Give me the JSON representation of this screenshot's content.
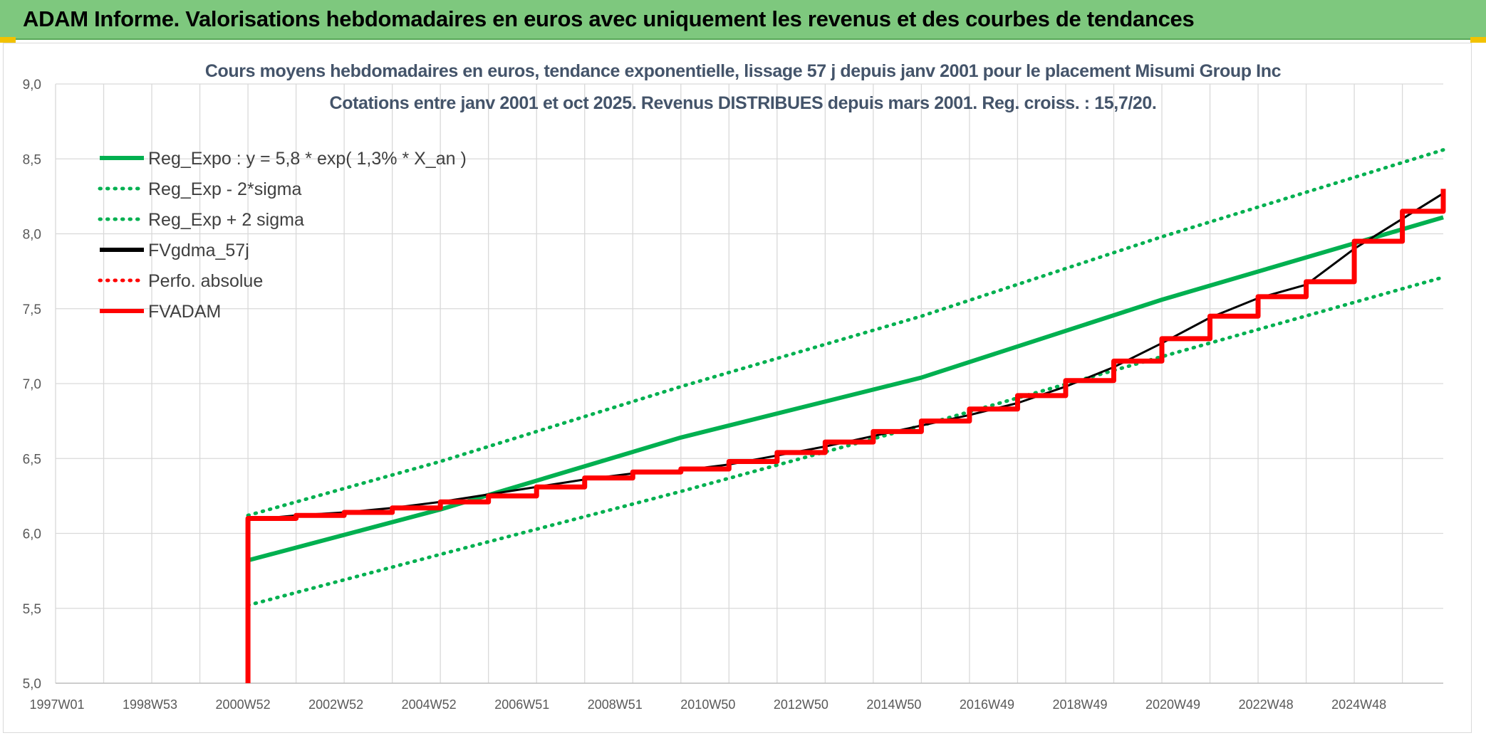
{
  "banner": {
    "title": "ADAM Informe. Valorisations hebdomadaires en euros avec uniquement les revenus et des courbes de tendances"
  },
  "colors": {
    "banner": "#7ec87e",
    "reg_expo": "#00b050",
    "fvgdma": "#000000",
    "fvadam": "#ff0000",
    "grid": "#d9d9d9",
    "title_text": "#44546a"
  },
  "chart_data": {
    "type": "line",
    "title": "Cours moyens hebdomadaires en euros, tendance exponentielle, lissage 57 j depuis janv 2001 pour le placement Misumi Group Inc",
    "subtitle": "Cotations entre janv 2001 et oct 2025. Revenus DISTRIBUES depuis mars 2001. Reg. croiss. : 15,7/20.",
    "xlabel": "",
    "ylabel": "",
    "ylim": [
      5.0,
      9.0
    ],
    "yticks": [
      "5,0",
      "5,5",
      "6,0",
      "6,5",
      "7,0",
      "7,5",
      "8,0",
      "8,5",
      "9,0"
    ],
    "xlim": [
      1997.0,
      2025.85
    ],
    "xticks": [
      "1997W01",
      "1998W53",
      "2000W52",
      "2002W52",
      "2004W52",
      "2006W51",
      "2008W51",
      "2010W50",
      "2012W50",
      "2014W50",
      "2016W49",
      "2018W49",
      "2020W49",
      "2022W48",
      "2024W48"
    ],
    "grid": true,
    "legend_position": "top-left",
    "series": [
      {
        "name": "Reg_Expo : y = 5,8 * exp( 1,3% *  X_an )",
        "style": "solid",
        "color": "#00b050",
        "x": [
          2001,
          2005,
          2010,
          2015,
          2020,
          2025.85
        ],
        "values": [
          5.82,
          6.16,
          6.64,
          7.04,
          7.56,
          8.11
        ]
      },
      {
        "name": "Reg_Exp - 2*sigma",
        "style": "dotted",
        "color": "#00b050",
        "x": [
          2001,
          2005,
          2010,
          2015,
          2020,
          2025.85
        ],
        "values": [
          5.52,
          5.86,
          6.28,
          6.72,
          7.18,
          7.71
        ]
      },
      {
        "name": "Reg_Exp + 2 sigma",
        "style": "dotted",
        "color": "#00b050",
        "x": [
          2001,
          2005,
          2010,
          2015,
          2020,
          2025.85
        ],
        "values": [
          6.12,
          6.48,
          6.98,
          7.45,
          7.98,
          8.56
        ]
      },
      {
        "name": "FVgdma_57j",
        "style": "solid",
        "color": "#000000",
        "x": [
          2001,
          2002,
          2003,
          2004,
          2005,
          2006,
          2007,
          2008,
          2009,
          2010,
          2011,
          2012,
          2013,
          2014,
          2015,
          2016,
          2017,
          2018,
          2019,
          2020,
          2021,
          2022,
          2023,
          2024,
          2025,
          2025.85
        ],
        "values": [
          6.09,
          6.12,
          6.14,
          6.17,
          6.21,
          6.26,
          6.31,
          6.36,
          6.4,
          6.42,
          6.46,
          6.52,
          6.58,
          6.65,
          6.72,
          6.79,
          6.87,
          6.98,
          7.11,
          7.27,
          7.44,
          7.57,
          7.66,
          7.9,
          8.1,
          8.27
        ]
      },
      {
        "name": "Perfo. absolue",
        "style": "dotted",
        "color": "#ff0000",
        "x": [],
        "values": []
      },
      {
        "name": "FVADAM",
        "style": "step",
        "color": "#ff0000",
        "x": [
          2001,
          2002,
          2003,
          2004,
          2005,
          2006,
          2007,
          2008,
          2009,
          2010,
          2011,
          2012,
          2013,
          2014,
          2015,
          2016,
          2017,
          2018,
          2019,
          2020,
          2021,
          2022,
          2023,
          2024,
          2025,
          2025.85
        ],
        "values": [
          6.1,
          6.12,
          6.14,
          6.17,
          6.21,
          6.25,
          6.31,
          6.37,
          6.41,
          6.43,
          6.48,
          6.54,
          6.61,
          6.68,
          6.75,
          6.83,
          6.92,
          7.02,
          7.15,
          7.3,
          7.45,
          7.58,
          7.68,
          7.95,
          8.15,
          8.3
        ]
      }
    ]
  }
}
